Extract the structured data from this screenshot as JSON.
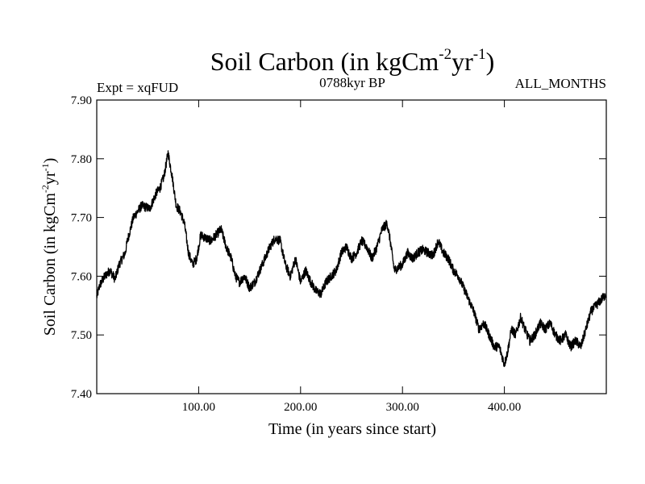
{
  "chart_data": {
    "type": "line",
    "title": {
      "main": "Soil Carbon (in kgCm",
      "sup1": "-2",
      "mid": "yr",
      "sup2": "-1",
      "end": ")"
    },
    "subtitle_left": "Expt = xqFUD",
    "subtitle_center": "0788kyr BP",
    "subtitle_right": "ALL_MONTHS",
    "xlabel": "Time (in years since start)",
    "ylabel": {
      "main": "Soil Carbon (in kgCm",
      "sup1": "-2",
      "mid": "yr",
      "sup2": "-1",
      "end": ")"
    },
    "xlim": [
      0,
      500
    ],
    "ylim": [
      7.4,
      7.9
    ],
    "xticks": [
      100,
      200,
      300,
      400
    ],
    "xtick_labels": [
      "100.00",
      "200.00",
      "300.00",
      "400.00"
    ],
    "yticks": [
      7.4,
      7.5,
      7.6,
      7.7,
      7.8,
      7.9
    ],
    "ytick_labels": [
      "7.40",
      "7.50",
      "7.60",
      "7.70",
      "7.80",
      "7.90"
    ],
    "series": [
      {
        "name": "Soil Carbon",
        "color": "#000000",
        "noise": 0.008,
        "x": [
          0,
          3,
          8,
          13,
          18,
          22,
          28,
          30,
          36,
          44,
          52,
          58,
          62,
          66,
          70,
          74,
          78,
          82,
          86,
          90,
          94,
          98,
          102,
          107,
          112,
          117,
          122,
          127,
          132,
          136,
          140,
          145,
          150,
          155,
          160,
          165,
          170,
          175,
          180,
          185,
          190,
          195,
          200,
          205,
          210,
          215,
          220,
          225,
          230,
          235,
          240,
          245,
          250,
          255,
          260,
          265,
          270,
          275,
          280,
          285,
          288,
          292,
          296,
          300,
          305,
          310,
          315,
          320,
          325,
          330,
          335,
          340,
          345,
          350,
          355,
          360,
          365,
          370,
          375,
          380,
          385,
          390,
          395,
          400,
          403,
          407,
          411,
          416,
          420,
          425,
          430,
          435,
          440,
          445,
          450,
          455,
          460,
          465,
          470,
          475,
          480,
          485,
          490,
          495,
          500
        ],
        "y": [
          7.565,
          7.585,
          7.6,
          7.61,
          7.595,
          7.62,
          7.64,
          7.66,
          7.7,
          7.72,
          7.715,
          7.74,
          7.75,
          7.77,
          7.81,
          7.77,
          7.72,
          7.71,
          7.69,
          7.64,
          7.62,
          7.63,
          7.67,
          7.665,
          7.66,
          7.67,
          7.68,
          7.65,
          7.63,
          7.6,
          7.59,
          7.6,
          7.58,
          7.59,
          7.61,
          7.63,
          7.65,
          7.665,
          7.66,
          7.62,
          7.6,
          7.63,
          7.59,
          7.61,
          7.59,
          7.575,
          7.57,
          7.59,
          7.6,
          7.61,
          7.64,
          7.65,
          7.63,
          7.64,
          7.66,
          7.65,
          7.63,
          7.65,
          7.68,
          7.69,
          7.66,
          7.61,
          7.615,
          7.62,
          7.64,
          7.63,
          7.64,
          7.645,
          7.64,
          7.635,
          7.66,
          7.64,
          7.63,
          7.61,
          7.6,
          7.58,
          7.56,
          7.54,
          7.51,
          7.52,
          7.5,
          7.48,
          7.48,
          7.45,
          7.47,
          7.51,
          7.5,
          7.53,
          7.51,
          7.49,
          7.5,
          7.52,
          7.51,
          7.52,
          7.5,
          7.49,
          7.5,
          7.48,
          7.49,
          7.48,
          7.51,
          7.54,
          7.55,
          7.56,
          7.57
        ]
      }
    ]
  }
}
